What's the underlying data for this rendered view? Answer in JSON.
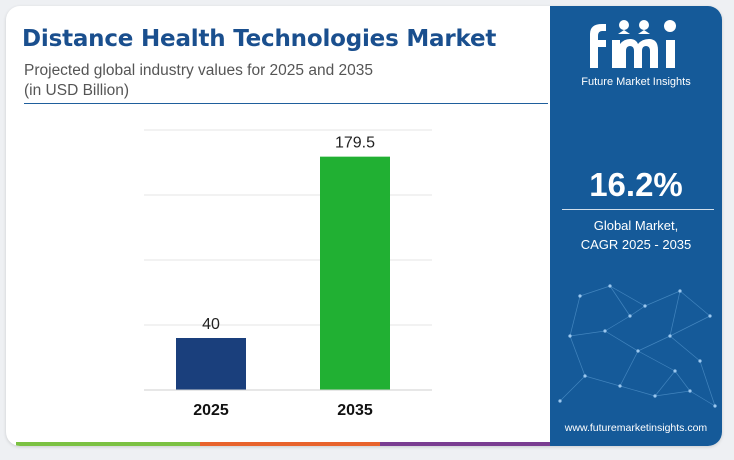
{
  "title": "Distance Health Technologies Market",
  "subtitle_line1": "Projected global industry values for 2025 and 2035",
  "subtitle_line2": "(in USD Billion)",
  "chart_data": {
    "type": "bar",
    "categories": [
      "2025",
      "2035"
    ],
    "values": [
      40,
      179.5
    ],
    "value_labels": [
      "40",
      "179.5"
    ],
    "bar_colors": [
      "#1a3f7c",
      "#21b033"
    ],
    "ylim": [
      0,
      200
    ],
    "grid": true,
    "title": "",
    "xlabel": "",
    "ylabel": ""
  },
  "sidebar": {
    "logo_text": "fmi",
    "logo_caption": "Future Market Insights",
    "cagr_value": "16.2%",
    "cagr_label_line1": "Global Market,",
    "cagr_label_line2": "CAGR 2025 - 2035",
    "website": "www.futuremarketinsights.com"
  },
  "colors": {
    "title": "#1a4f8e",
    "sidebar_bg": "#155a99",
    "footer": [
      "#7bc142",
      "#e8632c",
      "#7a3d91"
    ]
  }
}
